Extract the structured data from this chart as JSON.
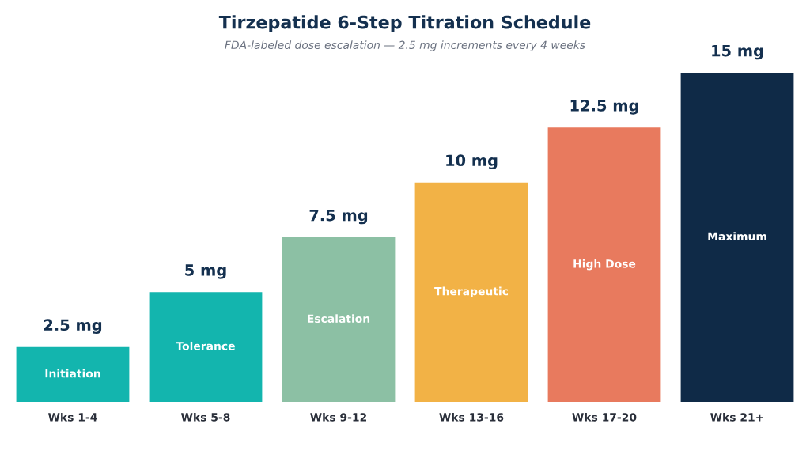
{
  "chart_data": {
    "type": "bar",
    "title": "Tirzepatide 6-Step Titration Schedule",
    "subtitle": "FDA-labeled dose escalation — 2.5 mg increments every 4 weeks",
    "categories": [
      "Wks 1-4",
      "Wks 5-8",
      "Wks 9-12",
      "Wks 13-16",
      "Wks 17-20",
      "Wks 21+"
    ],
    "values": [
      2.5,
      5,
      7.5,
      10,
      12.5,
      15
    ],
    "colors": [
      "#13b5ae",
      "#13b5ae",
      "#8cc0a4",
      "#f2b246",
      "#e87a5e",
      "#0f2a47"
    ],
    "value_labels": [
      "2.5 mg",
      "5 mg",
      "7.5 mg",
      "10 mg",
      "12.5 mg",
      "15 mg"
    ],
    "annotations": [
      "Initiation",
      "Tolerance",
      "Escalation",
      "Therapeutic",
      "High Dose",
      "Maximum"
    ],
    "grid": false,
    "legend": false
  }
}
